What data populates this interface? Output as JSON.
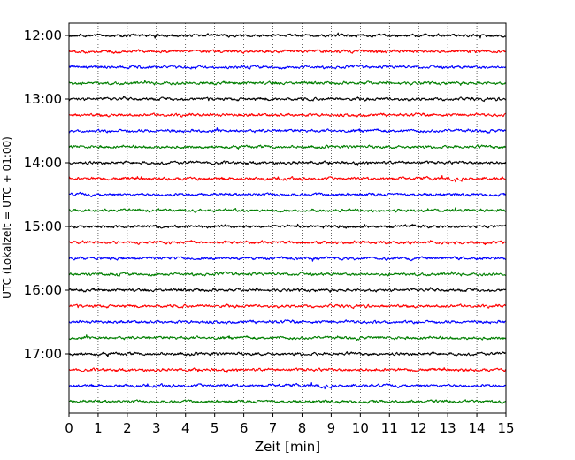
{
  "chart_data": {
    "type": "line",
    "subtype": "helicorder",
    "title": "",
    "xlabel": "Zeit  [min]",
    "ylabel": "UTC (Lokalzeit = UTC + 01:00)",
    "xlim": [
      0,
      15
    ],
    "x_ticks": [
      "0",
      "1",
      "2",
      "3",
      "4",
      "5",
      "6",
      "7",
      "8",
      "9",
      "10",
      "11",
      "12",
      "13",
      "14",
      "15"
    ],
    "y_tick_labels": [
      "12:00",
      "13:00",
      "14:00",
      "15:00",
      "16:00",
      "17:00"
    ],
    "start_time": "12:00",
    "end_time": "18:00",
    "minutes_per_line": 15,
    "colors": [
      "#000000",
      "#ff0000",
      "#0000ff",
      "#007f00"
    ],
    "grid": "vertical-dotted",
    "legend": "none"
  }
}
